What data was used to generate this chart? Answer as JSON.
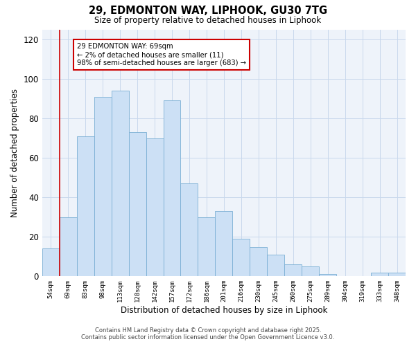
{
  "title": "29, EDMONTON WAY, LIPHOOK, GU30 7TG",
  "subtitle": "Size of property relative to detached houses in Liphook",
  "xlabel": "Distribution of detached houses by size in Liphook",
  "ylabel": "Number of detached properties",
  "bar_labels": [
    "54sqm",
    "69sqm",
    "83sqm",
    "98sqm",
    "113sqm",
    "128sqm",
    "142sqm",
    "157sqm",
    "172sqm",
    "186sqm",
    "201sqm",
    "216sqm",
    "230sqm",
    "245sqm",
    "260sqm",
    "275sqm",
    "289sqm",
    "304sqm",
    "319sqm",
    "333sqm",
    "348sqm"
  ],
  "bar_values": [
    14,
    30,
    71,
    91,
    94,
    73,
    70,
    89,
    47,
    30,
    33,
    19,
    15,
    11,
    6,
    5,
    1,
    0,
    0,
    2,
    2
  ],
  "bar_color": "#cce0f5",
  "bar_edge_color": "#7bafd4",
  "vline_x_index": 1,
  "vline_color": "#cc0000",
  "ylim": [
    0,
    125
  ],
  "yticks": [
    0,
    20,
    40,
    60,
    80,
    100,
    120
  ],
  "annotation_title": "29 EDMONTON WAY: 69sqm",
  "annotation_line1": "← 2% of detached houses are smaller (11)",
  "annotation_line2": "98% of semi-detached houses are larger (683) →",
  "annotation_box_color": "#ffffff",
  "annotation_box_edge_color": "#cc0000",
  "footer_line1": "Contains HM Land Registry data © Crown copyright and database right 2025.",
  "footer_line2": "Contains public sector information licensed under the Open Government Licence v3.0.",
  "background_color": "#ffffff",
  "grid_color": "#c8d8ec",
  "plot_bg_color": "#eef3fa"
}
